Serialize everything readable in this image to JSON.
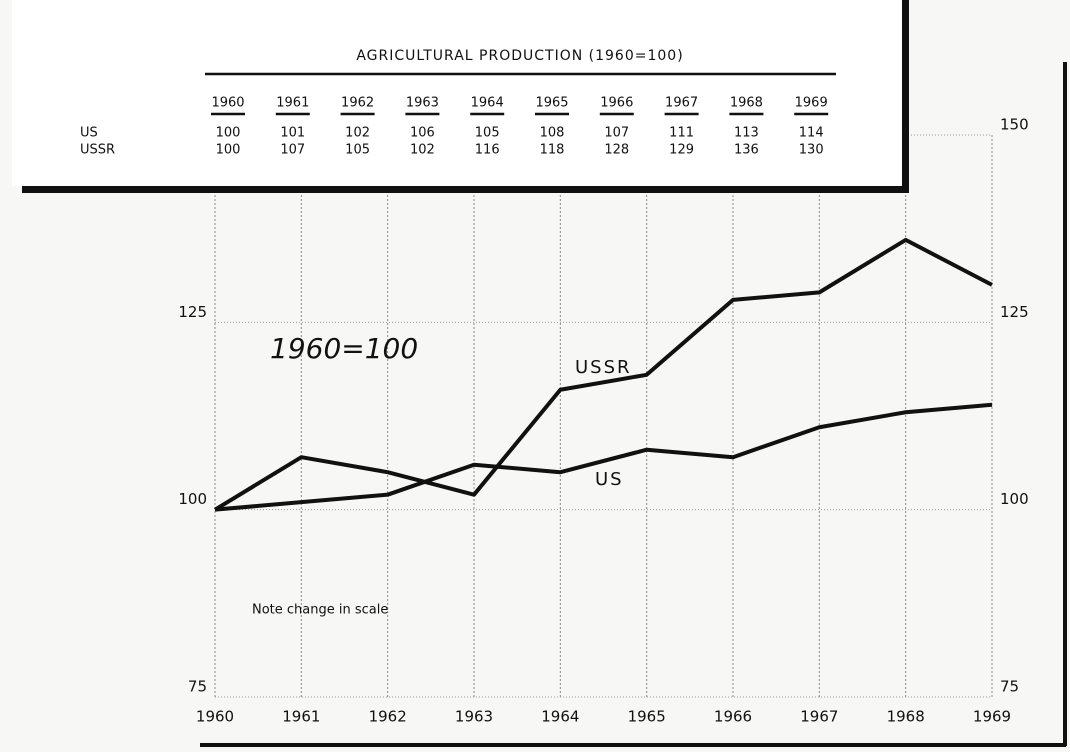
{
  "chart_data": {
    "type": "line",
    "table_title": "AGRICULTURAL PRODUCTION (1960=100)",
    "categories": [
      "1960",
      "1961",
      "1962",
      "1963",
      "1964",
      "1965",
      "1966",
      "1967",
      "1968",
      "1969"
    ],
    "series": [
      {
        "name": "US",
        "color": "#111111",
        "values": [
          100,
          101,
          102,
          106,
          105,
          108,
          107,
          111,
          113,
          114
        ]
      },
      {
        "name": "USSR",
        "color": "#111111",
        "values": [
          100,
          107,
          105,
          102,
          116,
          118,
          128,
          129,
          136,
          130
        ]
      }
    ],
    "ylim": [
      75,
      150
    ],
    "yticks": [
      75,
      100,
      125,
      150
    ],
    "grid": true,
    "annotations": [
      "1960=100",
      "Note change in scale"
    ]
  }
}
